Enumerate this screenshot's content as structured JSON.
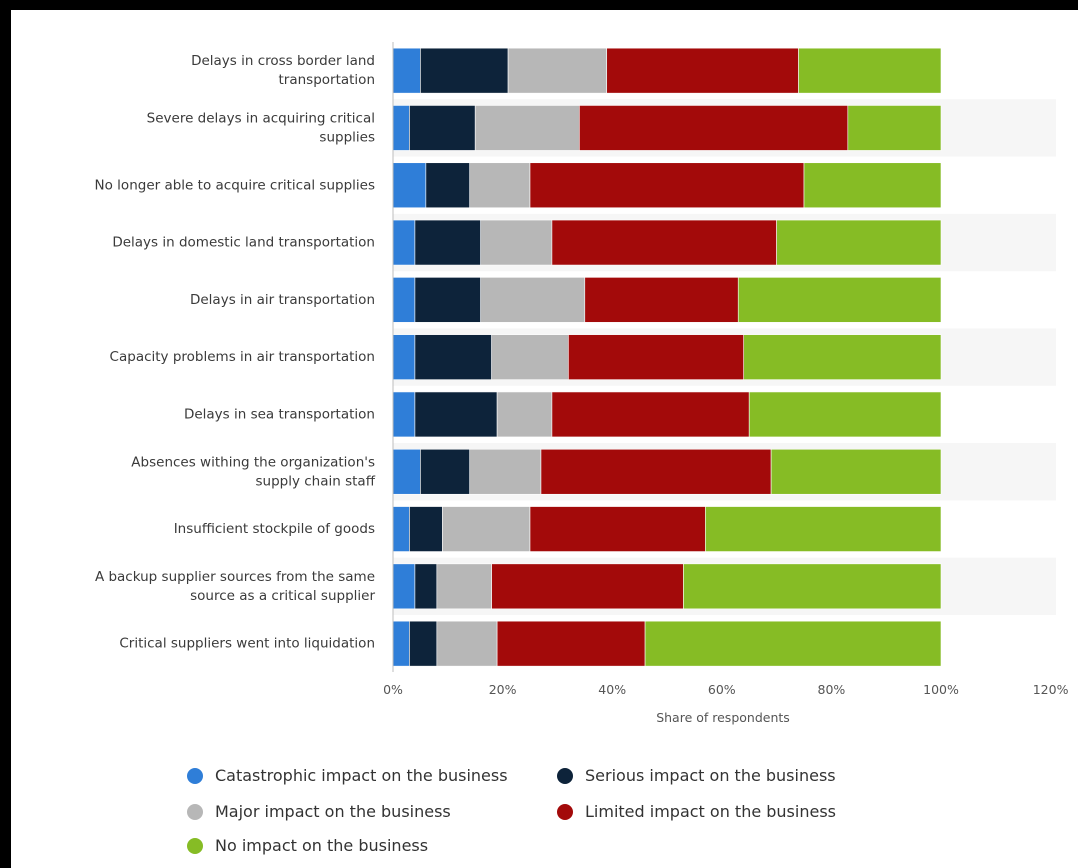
{
  "chart_data": {
    "type": "bar",
    "orientation": "horizontal",
    "stacked": true,
    "categories": [
      "Delays in cross border land transportation",
      "Severe delays in acquiring critical supplies",
      "No longer able to acquire critical supplies",
      "Delays in domestic land transportation",
      "Delays in air transportation",
      "Capacity problems in air transportation",
      "Delays in sea transportation",
      "Absences withing the organization's supply chain staff",
      "Insufficient stockpile of goods",
      "A backup supplier sources from the same source as a critical supplier",
      "Critical suppliers went into liquidation"
    ],
    "category_lines": [
      [
        "Delays in cross border land",
        "transportation"
      ],
      [
        "Severe delays in acquiring critical",
        "supplies"
      ],
      [
        "No longer able to acquire critical supplies"
      ],
      [
        "Delays in domestic land transportation"
      ],
      [
        "Delays in air transportation"
      ],
      [
        "Capacity problems in air transportation"
      ],
      [
        "Delays in sea transportation"
      ],
      [
        "Absences withing the organization's",
        "supply chain staff"
      ],
      [
        "Insufficient stockpile of goods"
      ],
      [
        "A backup supplier sources from the same",
        "source as a critical supplier"
      ],
      [
        "Critical suppliers went into liquidation"
      ]
    ],
    "series": [
      {
        "name": "Catastrophic impact on the business",
        "color": "#2f7ed8",
        "values": [
          5,
          3,
          6,
          4,
          4,
          4,
          4,
          5,
          3,
          4,
          3
        ]
      },
      {
        "name": "Serious impact on the business",
        "color": "#0d233a",
        "values": [
          16,
          12,
          8,
          12,
          12,
          14,
          15,
          9,
          6,
          4,
          5
        ]
      },
      {
        "name": "Major impact on the business",
        "color": "#b7b7b7",
        "values": [
          18,
          19,
          11,
          13,
          19,
          14,
          10,
          13,
          16,
          10,
          11
        ]
      },
      {
        "name": "Limited impact on the business",
        "color": "#a30a0a",
        "values": [
          35,
          49,
          50,
          41,
          28,
          32,
          36,
          42,
          32,
          35,
          27
        ]
      },
      {
        "name": "No impact on the business",
        "color": "#86bc25",
        "values": [
          26,
          17,
          25,
          30,
          37,
          36,
          35,
          31,
          43,
          47,
          54
        ]
      }
    ],
    "x_ticks": [
      "0%",
      "20%",
      "40%",
      "60%",
      "80%",
      "100%",
      "120%"
    ],
    "xlim": [
      0,
      120
    ],
    "xlabel": "Share of respondents",
    "ylabel": "",
    "title": "",
    "grid": false,
    "legend_position": "bottom"
  }
}
